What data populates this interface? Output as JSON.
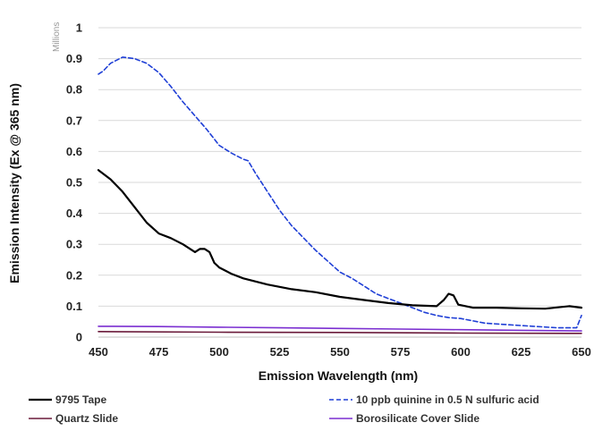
{
  "chart_data": {
    "type": "line",
    "title": "",
    "xlabel": "Emission Wavelength (nm)",
    "ylabel": "Emission Intensity (Ex @ 365 nm)",
    "y_units_note": "Millions",
    "xlim": [
      450,
      650
    ],
    "ylim": [
      0,
      1
    ],
    "x_ticks": [
      "450",
      "475",
      "500",
      "525",
      "550",
      "575",
      "600",
      "625",
      "650"
    ],
    "y_ticks": [
      "0",
      "0.1",
      "0.2",
      "0.3",
      "0.4",
      "0.5",
      "0.6",
      "0.7",
      "0.8",
      "0.9",
      "1"
    ],
    "grid": "horizontal",
    "legend_position": "bottom",
    "series": [
      {
        "name": "9795 Tape",
        "color": "#000000",
        "style": "solid",
        "points": [
          [
            450,
            0.54
          ],
          [
            455,
            0.51
          ],
          [
            460,
            0.47
          ],
          [
            465,
            0.42
          ],
          [
            470,
            0.37
          ],
          [
            475,
            0.335
          ],
          [
            480,
            0.32
          ],
          [
            485,
            0.3
          ],
          [
            490,
            0.275
          ],
          [
            492,
            0.285
          ],
          [
            494,
            0.285
          ],
          [
            496,
            0.275
          ],
          [
            498,
            0.24
          ],
          [
            500,
            0.225
          ],
          [
            505,
            0.205
          ],
          [
            510,
            0.19
          ],
          [
            520,
            0.17
          ],
          [
            530,
            0.155
          ],
          [
            540,
            0.145
          ],
          [
            550,
            0.13
          ],
          [
            560,
            0.12
          ],
          [
            570,
            0.11
          ],
          [
            580,
            0.103
          ],
          [
            590,
            0.1
          ],
          [
            593,
            0.12
          ],
          [
            595,
            0.14
          ],
          [
            597,
            0.135
          ],
          [
            599,
            0.105
          ],
          [
            605,
            0.095
          ],
          [
            615,
            0.095
          ],
          [
            625,
            0.093
          ],
          [
            635,
            0.092
          ],
          [
            645,
            0.1
          ],
          [
            650,
            0.095
          ]
        ]
      },
      {
        "name": "10 ppb quinine in 0.5 N sulfuric acid",
        "color": "#1f3fd6",
        "style": "dashed",
        "points": [
          [
            450,
            0.85
          ],
          [
            452,
            0.86
          ],
          [
            455,
            0.885
          ],
          [
            460,
            0.905
          ],
          [
            465,
            0.9
          ],
          [
            470,
            0.885
          ],
          [
            475,
            0.855
          ],
          [
            480,
            0.81
          ],
          [
            485,
            0.76
          ],
          [
            490,
            0.715
          ],
          [
            495,
            0.67
          ],
          [
            500,
            0.62
          ],
          [
            505,
            0.595
          ],
          [
            510,
            0.575
          ],
          [
            512,
            0.57
          ],
          [
            515,
            0.53
          ],
          [
            520,
            0.47
          ],
          [
            525,
            0.41
          ],
          [
            530,
            0.36
          ],
          [
            535,
            0.32
          ],
          [
            540,
            0.28
          ],
          [
            545,
            0.245
          ],
          [
            550,
            0.21
          ],
          [
            555,
            0.19
          ],
          [
            560,
            0.165
          ],
          [
            565,
            0.14
          ],
          [
            570,
            0.125
          ],
          [
            575,
            0.11
          ],
          [
            580,
            0.095
          ],
          [
            585,
            0.08
          ],
          [
            590,
            0.07
          ],
          [
            595,
            0.063
          ],
          [
            600,
            0.06
          ],
          [
            610,
            0.045
          ],
          [
            620,
            0.04
          ],
          [
            630,
            0.035
          ],
          [
            640,
            0.03
          ],
          [
            648,
            0.03
          ],
          [
            650,
            0.07
          ]
        ]
      },
      {
        "name": "Quartz Slide",
        "color": "#6a1a3a",
        "style": "solid",
        "points": [
          [
            450,
            0.018
          ],
          [
            500,
            0.016
          ],
          [
            550,
            0.015
          ],
          [
            600,
            0.013
          ],
          [
            650,
            0.012
          ]
        ]
      },
      {
        "name": "Borosilicate Cover Slide",
        "color": "#7b2fd1",
        "style": "solid",
        "points": [
          [
            450,
            0.035
          ],
          [
            475,
            0.034
          ],
          [
            500,
            0.032
          ],
          [
            525,
            0.03
          ],
          [
            550,
            0.028
          ],
          [
            575,
            0.026
          ],
          [
            600,
            0.024
          ],
          [
            625,
            0.022
          ],
          [
            650,
            0.02
          ]
        ]
      }
    ]
  }
}
